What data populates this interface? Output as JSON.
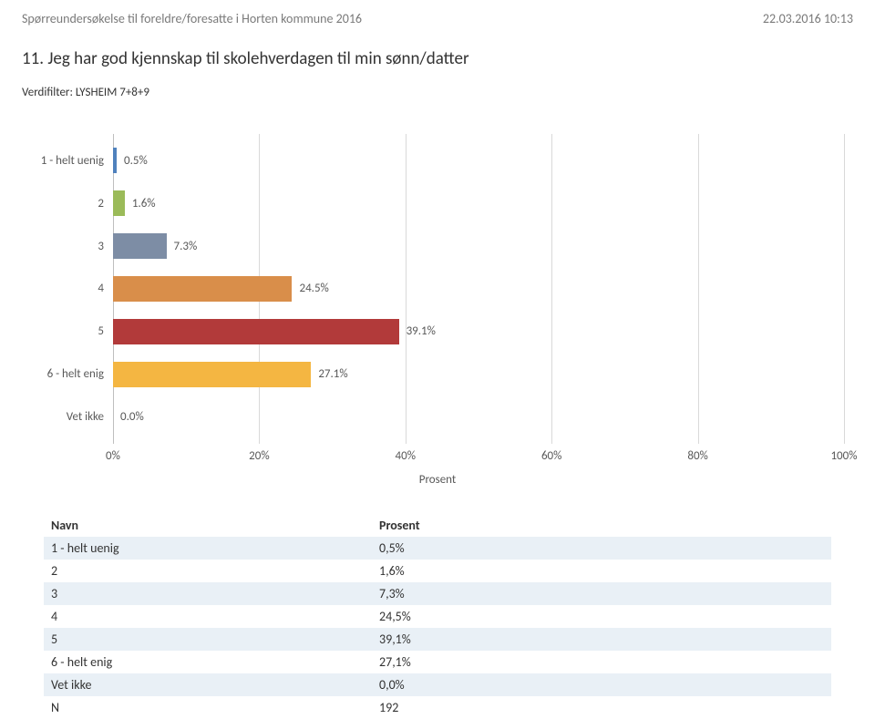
{
  "header": {
    "left": "Spørreundersøkelse til foreldre/foresatte i Horten kommune 2016",
    "right": "22.03.2016 10:13"
  },
  "question": "11. Jeg har god kjennskap til skolehverdagen til min sønn/datter",
  "filter": "Verdifilter: LYSHEIM 7+8+9",
  "chart": {
    "type": "bar-horizontal",
    "xlim": [
      0,
      100
    ],
    "xtick_step": 20,
    "xticks": [
      "0%",
      "20%",
      "40%",
      "60%",
      "80%",
      "100%"
    ],
    "xaxis_title": "Prosent",
    "grid_color": "#d9d9d9",
    "axis_line_color": "#bfbfbf",
    "background_color": "#ffffff",
    "label_color": "#595959",
    "label_fontsize": 13,
    "bars": [
      {
        "category": "1 - helt uenig",
        "value": 0.5,
        "label": "0.5%",
        "color": "#4f81bd"
      },
      {
        "category": "2",
        "value": 1.6,
        "label": "1.6%",
        "color": "#9bbb59"
      },
      {
        "category": "3",
        "value": 7.3,
        "label": "7.3%",
        "color": "#7d8da5"
      },
      {
        "category": "4",
        "value": 24.5,
        "label": "24.5%",
        "color": "#d98e4a"
      },
      {
        "category": "5",
        "value": 39.1,
        "label": "39.1%",
        "color": "#b23a3a"
      },
      {
        "category": "6 - helt enig",
        "value": 27.1,
        "label": "27.1%",
        "color": "#f4b642"
      },
      {
        "category": "Vet ikke",
        "value": 0.0,
        "label": "0.0%",
        "color": "#4f81bd"
      }
    ]
  },
  "table": {
    "header_name": "Navn",
    "header_value": "Prosent",
    "zebra_color": "#e9f0f6",
    "rows": [
      {
        "name": "1 - helt uenig",
        "value": "0,5%"
      },
      {
        "name": "2",
        "value": "1,6%"
      },
      {
        "name": "3",
        "value": "7,3%"
      },
      {
        "name": "4",
        "value": "24,5%"
      },
      {
        "name": "5",
        "value": "39,1%"
      },
      {
        "name": "6 - helt enig",
        "value": "27,1%"
      },
      {
        "name": "Vet ikke",
        "value": "0,0%"
      },
      {
        "name": "N",
        "value": "192"
      }
    ]
  }
}
